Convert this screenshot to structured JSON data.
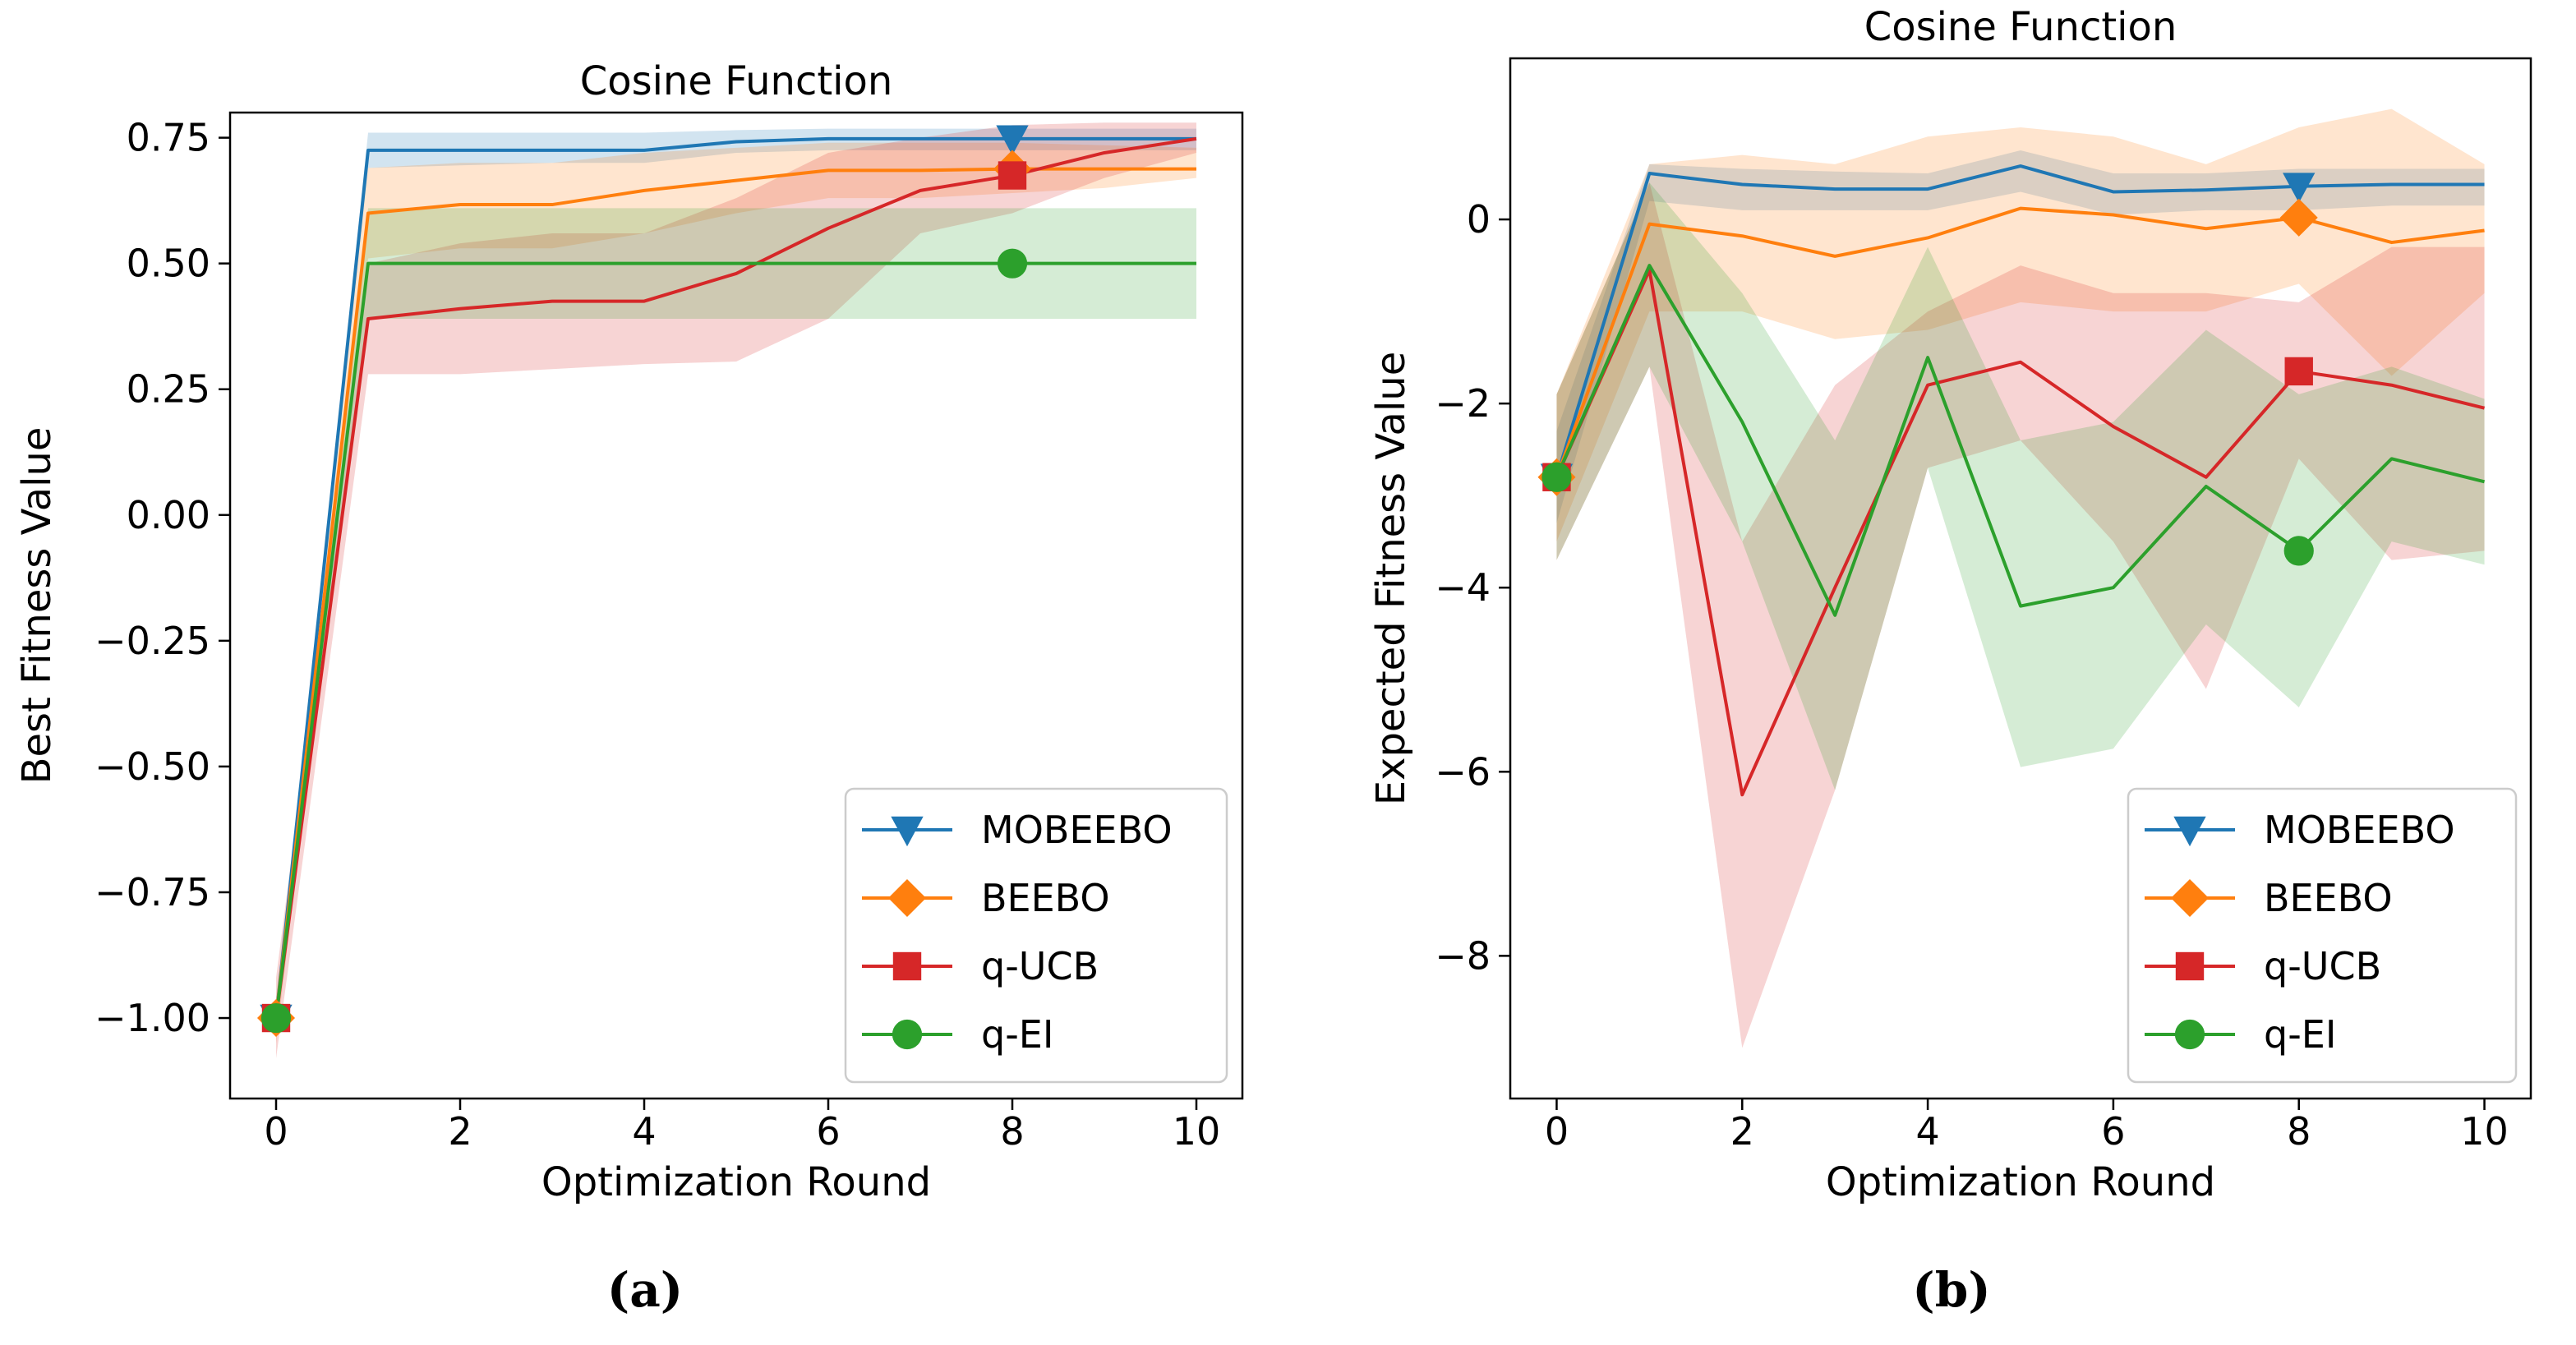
{
  "chart_data": [
    {
      "type": "line",
      "panel_label": "(a)",
      "title": "Cosine Function",
      "xlabel": "Optimization Round",
      "ylabel": "Best Fitness Value",
      "xlim": [
        -0.5,
        10.5
      ],
      "ylim": [
        -1.16,
        0.8
      ],
      "xticks": [
        0,
        2,
        4,
        6,
        8,
        10
      ],
      "xtick_labels": [
        "0",
        "2",
        "4",
        "6",
        "8",
        "10"
      ],
      "yticks": [
        -1.0,
        -0.75,
        -0.5,
        -0.25,
        0.0,
        0.25,
        0.5,
        0.75
      ],
      "ytick_labels": [
        "−1.00",
        "−0.75",
        "−0.50",
        "−0.25",
        "0.00",
        "0.25",
        "0.50",
        "0.75"
      ],
      "legend_position": "lower-right",
      "x": [
        0,
        1,
        2,
        3,
        4,
        5,
        6,
        7,
        8,
        9,
        10
      ],
      "series": [
        {
          "name": "MOBEEBO",
          "color": "#1f77b4",
          "marker": "triangle-down",
          "marker_x": 8,
          "values": [
            -1.0,
            0.725,
            0.725,
            0.725,
            0.725,
            0.742,
            0.748,
            0.748,
            0.748,
            0.748,
            0.748
          ],
          "lower": [
            -1.0,
            0.69,
            0.695,
            0.7,
            0.7,
            0.72,
            0.725,
            0.725,
            0.725,
            0.725,
            0.725
          ],
          "upper": [
            -1.0,
            0.76,
            0.76,
            0.76,
            0.76,
            0.765,
            0.768,
            0.768,
            0.768,
            0.768,
            0.768
          ]
        },
        {
          "name": "BEEBO",
          "color": "#ff7f0e",
          "marker": "diamond",
          "marker_x": 8,
          "values": [
            -1.0,
            0.6,
            0.617,
            0.617,
            0.645,
            0.665,
            0.685,
            0.685,
            0.688,
            0.688,
            0.688
          ],
          "lower": [
            -1.05,
            0.51,
            0.53,
            0.53,
            0.56,
            0.6,
            0.63,
            0.63,
            0.64,
            0.65,
            0.67
          ],
          "upper": [
            -0.96,
            0.69,
            0.7,
            0.7,
            0.72,
            0.73,
            0.74,
            0.74,
            0.74,
            0.735,
            0.73
          ]
        },
        {
          "name": "q-UCB",
          "color": "#d62728",
          "marker": "square",
          "marker_x": 8,
          "values": [
            -1.0,
            0.39,
            0.41,
            0.425,
            0.425,
            0.48,
            0.57,
            0.645,
            0.675,
            0.72,
            0.748
          ],
          "lower": [
            -1.08,
            0.28,
            0.28,
            0.29,
            0.3,
            0.305,
            0.39,
            0.56,
            0.6,
            0.67,
            0.72
          ],
          "upper": [
            -0.92,
            0.5,
            0.54,
            0.56,
            0.56,
            0.63,
            0.72,
            0.75,
            0.775,
            0.78,
            0.78
          ]
        },
        {
          "name": "q-EI",
          "color": "#2ca02c",
          "marker": "circle",
          "marker_x": 8,
          "values": [
            -1.0,
            0.5,
            0.5,
            0.5,
            0.5,
            0.5,
            0.5,
            0.5,
            0.5,
            0.5,
            0.5
          ],
          "lower": [
            -1.0,
            0.39,
            0.39,
            0.39,
            0.39,
            0.39,
            0.39,
            0.39,
            0.39,
            0.39,
            0.39
          ],
          "upper": [
            -1.0,
            0.61,
            0.61,
            0.61,
            0.61,
            0.61,
            0.61,
            0.61,
            0.61,
            0.61,
            0.61
          ]
        }
      ]
    },
    {
      "type": "line",
      "panel_label": "(b)",
      "title": "Cosine Function",
      "xlabel": "Optimization Round",
      "ylabel": "Expected Fitness Value",
      "xlim": [
        -0.5,
        10.5
      ],
      "ylim": [
        -9.55,
        1.75
      ],
      "xticks": [
        0,
        2,
        4,
        6,
        8,
        10
      ],
      "xtick_labels": [
        "0",
        "2",
        "4",
        "6",
        "8",
        "10"
      ],
      "yticks": [
        -8,
        -6,
        -4,
        -2,
        0
      ],
      "ytick_labels": [
        "−8",
        "−6",
        "−4",
        "−2",
        "0"
      ],
      "legend_position": "lower-right",
      "x": [
        0,
        1,
        2,
        3,
        4,
        5,
        6,
        7,
        8,
        9,
        10
      ],
      "series": [
        {
          "name": "MOBEEBO",
          "color": "#1f77b4",
          "marker": "triangle-down",
          "marker_x": 8,
          "values": [
            -2.8,
            0.5,
            0.38,
            0.33,
            0.33,
            0.58,
            0.3,
            0.32,
            0.36,
            0.38,
            0.38
          ],
          "lower": [
            -3.3,
            0.2,
            0.1,
            0.1,
            0.1,
            0.3,
            0.05,
            0.1,
            0.1,
            0.15,
            0.15
          ],
          "upper": [
            -2.3,
            0.6,
            0.55,
            0.52,
            0.5,
            0.75,
            0.5,
            0.5,
            0.55,
            0.55,
            0.55
          ]
        },
        {
          "name": "BEEBO",
          "color": "#ff7f0e",
          "marker": "diamond",
          "marker_x": 8,
          "values": [
            -2.8,
            -0.05,
            -0.18,
            -0.4,
            -0.2,
            0.12,
            0.05,
            -0.1,
            0.02,
            -0.25,
            -0.12
          ],
          "lower": [
            -3.5,
            -1.0,
            -1.0,
            -1.3,
            -1.2,
            -0.9,
            -1.0,
            -1.0,
            -0.7,
            -1.7,
            -0.8
          ],
          "upper": [
            -1.9,
            0.6,
            0.7,
            0.6,
            0.9,
            1.0,
            0.9,
            0.6,
            1.0,
            1.2,
            0.6
          ]
        },
        {
          "name": "q-UCB",
          "color": "#d62728",
          "marker": "square",
          "marker_x": 8,
          "values": [
            -2.8,
            -0.55,
            -6.25,
            -4.0,
            -1.8,
            -1.55,
            -2.25,
            -2.8,
            -1.65,
            -1.8,
            -2.05
          ],
          "lower": [
            -3.7,
            -1.6,
            -9.0,
            -6.2,
            -2.7,
            -2.4,
            -3.5,
            -5.1,
            -2.6,
            -3.7,
            -3.6
          ],
          "upper": [
            -1.9,
            0.4,
            -3.5,
            -1.8,
            -1.0,
            -0.5,
            -0.8,
            -0.8,
            -0.9,
            -0.3,
            -0.3
          ]
        },
        {
          "name": "q-EI",
          "color": "#2ca02c",
          "marker": "circle",
          "marker_x": 8,
          "values": [
            -2.8,
            -0.5,
            -2.2,
            -4.3,
            -1.5,
            -4.2,
            -4.0,
            -2.9,
            -3.6,
            -2.6,
            -2.85
          ],
          "lower": [
            -3.7,
            -1.6,
            -3.5,
            -6.2,
            -2.7,
            -5.95,
            -5.75,
            -4.4,
            -5.3,
            -3.5,
            -3.75
          ],
          "upper": [
            -1.9,
            0.4,
            -0.8,
            -2.4,
            -0.3,
            -2.4,
            -2.2,
            -1.2,
            -1.9,
            -1.6,
            -1.95
          ]
        }
      ]
    }
  ]
}
